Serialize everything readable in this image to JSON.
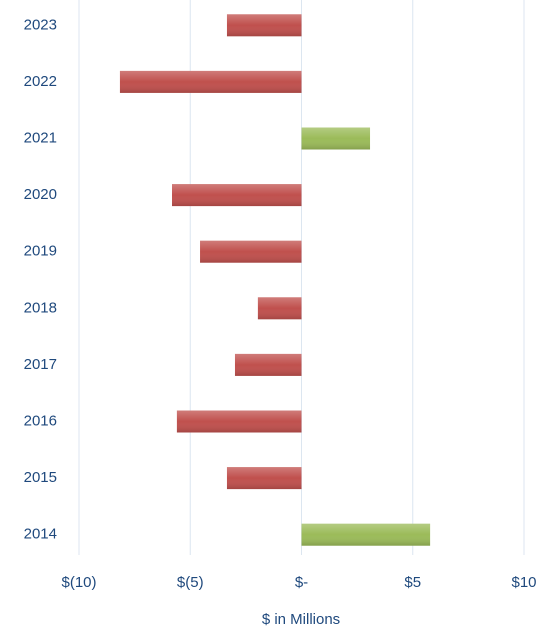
{
  "chart_data": {
    "type": "hbar",
    "x_label": "$ in Millions",
    "categories": [
      "2014",
      "2015",
      "2016",
      "2017",
      "2018",
      "2019",
      "2020",
      "2021",
      "2022",
      "2023"
    ],
    "values": [
      5.78,
      -3.35,
      -5.6,
      -2.99,
      -1.96,
      -4.56,
      -5.82,
      3.08,
      -8.16,
      -3.35
    ],
    "positive_color": "#9bbb59",
    "negative_color": "#c0504d",
    "xlim": [
      -10,
      10
    ],
    "xticks": [
      {
        "value": -10,
        "label": "$(10)"
      },
      {
        "value": -5,
        "label": "$(5)"
      },
      {
        "value": 0,
        "label": "$-"
      },
      {
        "value": 5,
        "label": "$5"
      },
      {
        "value": 10,
        "label": "$10"
      }
    ],
    "grid": true
  }
}
